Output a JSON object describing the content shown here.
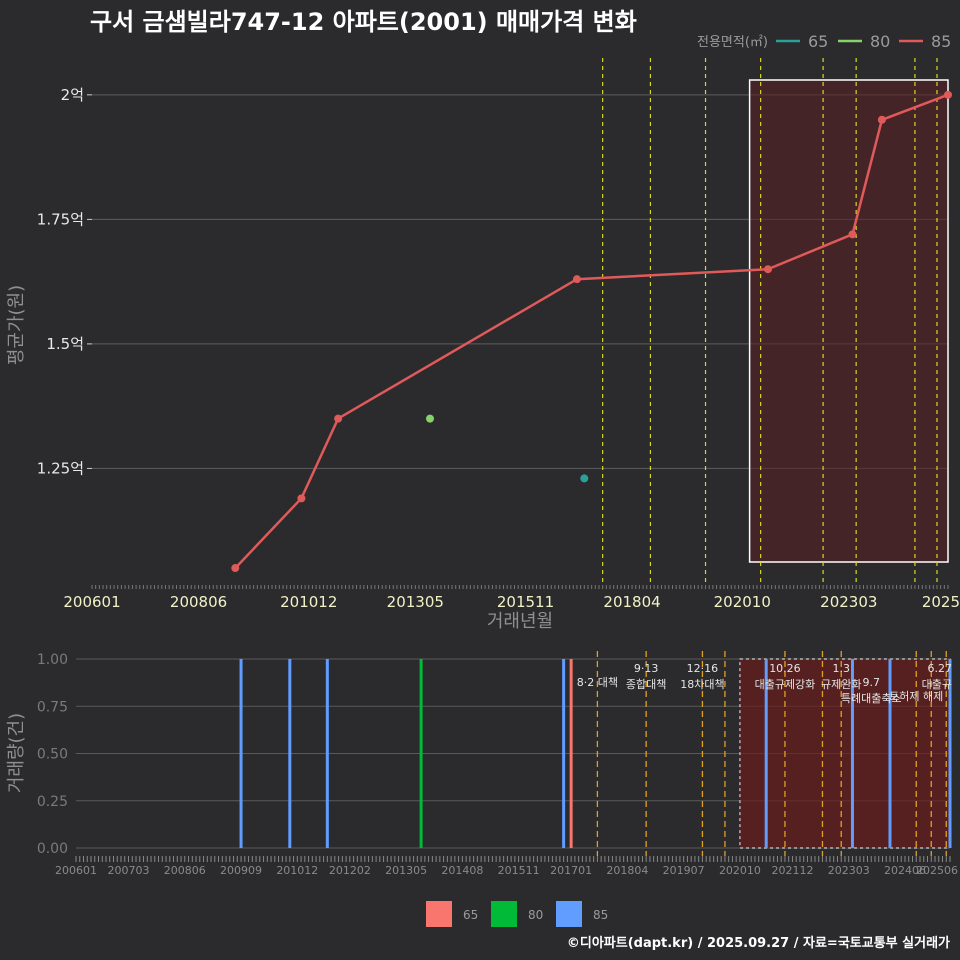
{
  "title": "구서 금샘빌라747-12 아파트(2001) 매매가격 변화",
  "footer": "©디아파트(dapt.kr) / 2025.09.27 / 자료=국토교통부 실거래가",
  "legend_top": {
    "title": "전용면적(㎡)",
    "items": [
      {
        "label": "65",
        "color": "#2aa198"
      },
      {
        "label": "80",
        "color": "#86d36b"
      },
      {
        "label": "85",
        "color": "#e05a5a"
      }
    ]
  },
  "legend_bottom": {
    "items": [
      {
        "label": "65",
        "color": "#f8766d"
      },
      {
        "label": "80",
        "color": "#00ba38"
      },
      {
        "label": "85",
        "color": "#619cff"
      }
    ]
  },
  "chart_data": [
    {
      "type": "line",
      "xlabel": "거래년월",
      "ylabel": "평균가(원)",
      "xlim": [
        "2006-01",
        "2025-06"
      ],
      "ylim": [
        1.02,
        2.08
      ],
      "x_ticks": [
        "200601",
        "200806",
        "201012",
        "201305",
        "201511",
        "201804",
        "202010",
        "202303",
        "2025"
      ],
      "y_ticks": [
        {
          "value": 1.25,
          "label": "1.25억"
        },
        {
          "value": 1.5,
          "label": "1.5억"
        },
        {
          "value": 1.75,
          "label": "1.75억"
        },
        {
          "value": 2.0,
          "label": "2억"
        }
      ],
      "series": [
        {
          "name": "85",
          "color": "#e05a5a",
          "points": [
            {
              "x": "2009-04",
              "y": 1.05
            },
            {
              "x": "2010-10",
              "y": 1.19
            },
            {
              "x": "2011-08",
              "y": 1.35
            },
            {
              "x": "2017-01",
              "y": 1.63
            },
            {
              "x": "2021-05",
              "y": 1.65
            },
            {
              "x": "2023-04",
              "y": 1.72
            },
            {
              "x": "2023-12",
              "y": 1.95
            },
            {
              "x": "2025-06",
              "y": 2.0
            }
          ]
        },
        {
          "name": "80",
          "color": "#86d36b",
          "points": [
            {
              "x": "2013-09",
              "y": 1.35
            }
          ]
        },
        {
          "name": "65",
          "color": "#2aa198",
          "points": [
            {
              "x": "2017-03",
              "y": 1.23
            }
          ]
        }
      ],
      "policy_lines": [
        "2017-08",
        "2018-09",
        "2019-12",
        "2021-03",
        "2022-08",
        "2023-05",
        "2024-09",
        "2025-03"
      ],
      "highlight_range": [
        "2020-12",
        "2025-06"
      ]
    },
    {
      "type": "bar",
      "xlabel": "",
      "ylabel": "거래량(건)",
      "ylim": [
        0,
        1.0
      ],
      "y_ticks": [
        "0.00",
        "0.25",
        "0.50",
        "0.75",
        "1.00"
      ],
      "x_ticks": [
        "200601",
        "200703",
        "200806",
        "200909",
        "201012",
        "201202",
        "201305",
        "201408",
        "201511",
        "201701",
        "201804",
        "201907",
        "202010",
        "202112",
        "202303",
        "202406",
        "202506"
      ],
      "bars": [
        {
          "x": "2009-09",
          "value": 1,
          "series": "85"
        },
        {
          "x": "2010-10",
          "value": 1,
          "series": "85"
        },
        {
          "x": "2011-08",
          "value": 1,
          "series": "85"
        },
        {
          "x": "2013-09",
          "value": 1,
          "series": "80"
        },
        {
          "x": "2016-11",
          "value": 1,
          "series": "85"
        },
        {
          "x": "2017-01",
          "value": 1,
          "series": "65"
        },
        {
          "x": "2021-05",
          "value": 1,
          "series": "85"
        },
        {
          "x": "2023-04",
          "value": 1,
          "series": "85"
        },
        {
          "x": "2024-02",
          "value": 1,
          "series": "85"
        },
        {
          "x": "2025-06",
          "value": 1,
          "series": "85"
        }
      ],
      "policy_lines": [
        "2017-08",
        "2018-09",
        "2019-12",
        "2020-06",
        "2021-10",
        "2022-08",
        "2023-01",
        "2024-09",
        "2025-01",
        "2025-05"
      ],
      "annotations": [
        {
          "x": "2017-08",
          "lines": [
            "8·2 대책"
          ],
          "row": 1
        },
        {
          "x": "2018-09",
          "lines": [
            "9·13",
            "종합대책"
          ],
          "row": 0
        },
        {
          "x": "2019-12",
          "lines": [
            "12·16",
            "18차대책"
          ],
          "row": 0
        },
        {
          "x": "2021-10",
          "lines": [
            "10.26",
            "대출규제강화"
          ],
          "row": 0
        },
        {
          "x": "2023-01",
          "lines": [
            "1.3",
            "규제완화"
          ],
          "row": 0
        },
        {
          "x": "2023-09",
          "lines": [
            "9.7",
            "특례대출축소"
          ],
          "row": 1
        },
        {
          "x": "2024-09",
          "lines": [
            "토허제 해제"
          ],
          "row": 2
        },
        {
          "x": "2025-06",
          "lines": [
            "6.27",
            "대출규"
          ],
          "row": 0
        }
      ],
      "highlight_range": [
        "2020-10",
        "2025-06"
      ]
    }
  ]
}
